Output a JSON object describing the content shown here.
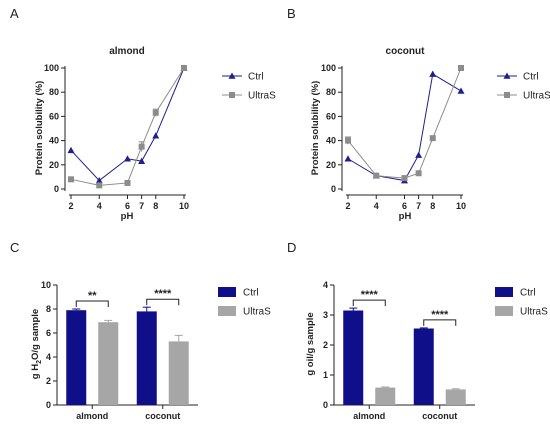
{
  "panels": [
    {
      "letter": "A",
      "title": "almond",
      "chart_data": {
        "type": "line",
        "title": "almond",
        "xlabel": "pH",
        "ylabel": "Protein solubility (%)",
        "x": [
          2,
          4,
          6,
          7,
          8,
          10
        ],
        "xlim": [
          2,
          10
        ],
        "ylim": [
          0,
          100
        ],
        "yticks": [
          0,
          20,
          40,
          60,
          80,
          100
        ],
        "legend_position": "right",
        "grid": false,
        "series": [
          {
            "name": "Ctrl",
            "color": "#1f1f8f",
            "marker": "triangle",
            "values": [
              32,
              7,
              25,
              23,
              44,
              100
            ],
            "errors": [
              0,
              0,
              0,
              0,
              0,
              0
            ]
          },
          {
            "name": "UltraS",
            "color": "#8c8c8c",
            "marker": "square",
            "values": [
              8,
              3,
              5,
              35,
              63,
              100
            ],
            "errors": [
              0,
              0,
              0,
              4,
              3,
              0
            ]
          }
        ]
      }
    },
    {
      "letter": "B",
      "title": "coconut",
      "chart_data": {
        "type": "line",
        "title": "coconut",
        "xlabel": "pH",
        "ylabel": "Protein solubility (%)",
        "x": [
          2,
          4,
          6,
          7,
          8,
          10
        ],
        "xlim": [
          2,
          10
        ],
        "ylim": [
          0,
          100
        ],
        "yticks": [
          0,
          20,
          40,
          60,
          80,
          100
        ],
        "legend_position": "right",
        "grid": false,
        "series": [
          {
            "name": "Ctrl",
            "color": "#1f1f8f",
            "marker": "triangle",
            "values": [
              25,
              11,
              7,
              28,
              95,
              81
            ],
            "errors": [
              0,
              0,
              0,
              0,
              0,
              0
            ]
          },
          {
            "name": "UltraS",
            "color": "#8c8c8c",
            "marker": "square",
            "values": [
              40,
              11,
              9,
              13,
              42,
              100
            ],
            "errors": [
              3,
              0,
              0,
              0,
              0,
              0
            ]
          }
        ]
      }
    },
    {
      "letter": "C",
      "chart_data": {
        "type": "bar",
        "ylabel_parts": {
          "a": "g H",
          "b": "2",
          "c": "O/g sample"
        },
        "categories": [
          "almond",
          "coconut"
        ],
        "ylim": [
          0,
          10
        ],
        "yticks": [
          0,
          2,
          4,
          6,
          8,
          10
        ],
        "legend_position": "right",
        "grid": false,
        "series": [
          {
            "name": "Ctrl",
            "color": "#0f0f8a",
            "values": [
              7.9,
              7.8
            ],
            "errors": [
              0.1,
              0.35
            ]
          },
          {
            "name": "UltraS",
            "color": "#a6a6a6",
            "values": [
              6.9,
              5.3
            ],
            "errors": [
              0.15,
              0.5
            ]
          }
        ],
        "significance": [
          "**",
          "****"
        ]
      }
    },
    {
      "letter": "D",
      "chart_data": {
        "type": "bar",
        "ylabel": "g oil/g sample",
        "categories": [
          "almond",
          "coconut"
        ],
        "ylim": [
          0,
          4
        ],
        "yticks": [
          0,
          1,
          2,
          3,
          4
        ],
        "legend_position": "right",
        "grid": false,
        "series": [
          {
            "name": "Ctrl",
            "color": "#0f0f8a",
            "values": [
              3.15,
              2.55
            ],
            "errors": [
              0.08,
              0.02
            ]
          },
          {
            "name": "UltraS",
            "color": "#a6a6a6",
            "values": [
              0.58,
              0.52
            ],
            "errors": [
              0.02,
              0.02
            ]
          }
        ],
        "significance": [
          "****",
          "****"
        ]
      }
    }
  ]
}
